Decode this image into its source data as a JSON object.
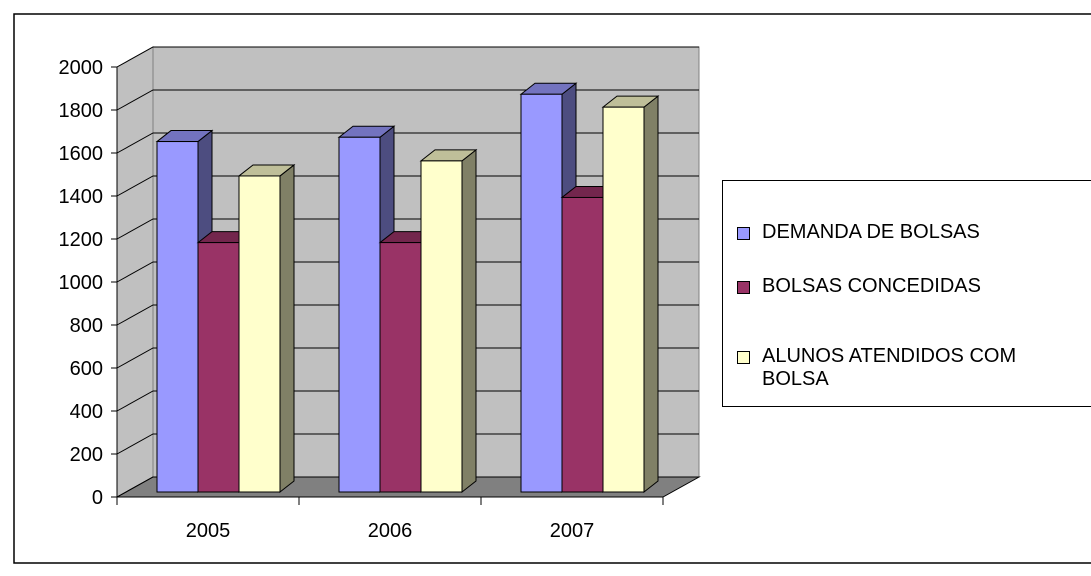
{
  "chart_data": {
    "type": "bar3d",
    "categories": [
      "2005",
      "2006",
      "2007"
    ],
    "series": [
      {
        "name": "DEMANDA DE BOLSAS",
        "color": "#9999ff",
        "values": [
          1630,
          1650,
          1850
        ]
      },
      {
        "name": "BOLSAS CONCEDIDAS",
        "color": "#993366",
        "values": [
          1160,
          1160,
          1370
        ]
      },
      {
        "name": "ALUNOS ATENDIDOS COM BOLSA",
        "color": "#ffffcc",
        "values": [
          1470,
          1540,
          1790
        ]
      }
    ],
    "ylim": [
      0,
      2000
    ],
    "yticks": [
      0,
      200,
      400,
      600,
      800,
      1000,
      1200,
      1400,
      1600,
      1800,
      2000
    ],
    "grid": true,
    "legend": "right"
  }
}
